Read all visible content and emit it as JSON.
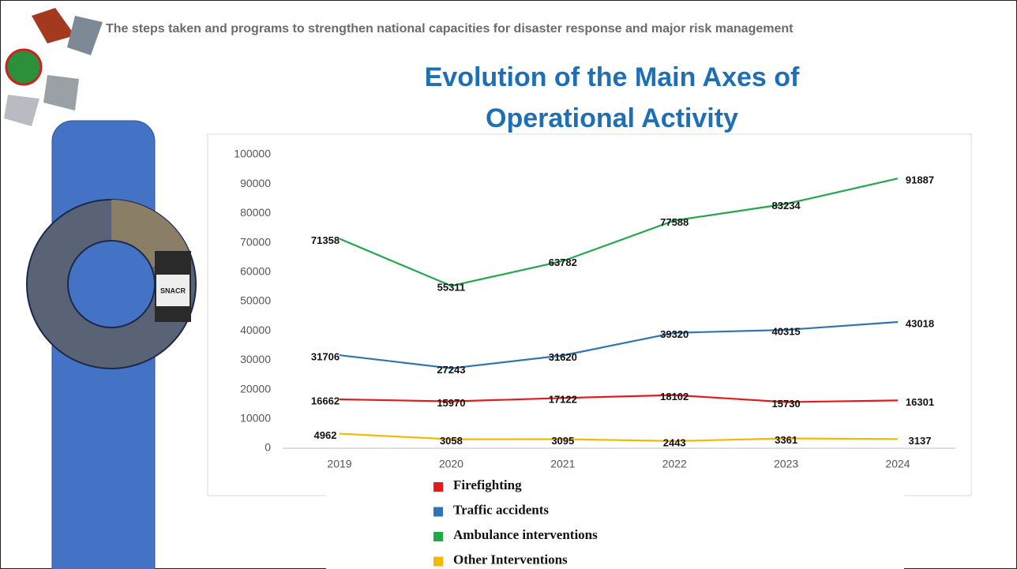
{
  "header": "The steps taken and programs to strengthen national capacities for disaster response and major risk management",
  "chart_data": {
    "type": "line",
    "title": "Evolution of the Main Axes of Operational Activity",
    "categories": [
      "2019",
      "2020",
      "2021",
      "2022",
      "2023",
      "2024"
    ],
    "series": [
      {
        "name": "Firefighting",
        "color": "#e31b1b",
        "values": [
          16662,
          15970,
          17122,
          18102,
          15730,
          16301
        ]
      },
      {
        "name": "Traffic accidents",
        "color": "#2e75b6",
        "values": [
          31706,
          27243,
          31620,
          39320,
          40315,
          43018
        ]
      },
      {
        "name": "Ambulance interventions",
        "color": "#21a84a",
        "values": [
          71358,
          55311,
          63782,
          77588,
          83234,
          91887
        ]
      },
      {
        "name": "Other Interventions",
        "color": "#f5b800",
        "values": [
          4962,
          3058,
          3095,
          2443,
          3361,
          3137
        ]
      }
    ],
    "ylim": [
      0,
      100000
    ],
    "yticks": [
      0,
      10000,
      20000,
      30000,
      40000,
      50000,
      60000,
      70000,
      80000,
      90000,
      100000
    ],
    "grid": false
  }
}
